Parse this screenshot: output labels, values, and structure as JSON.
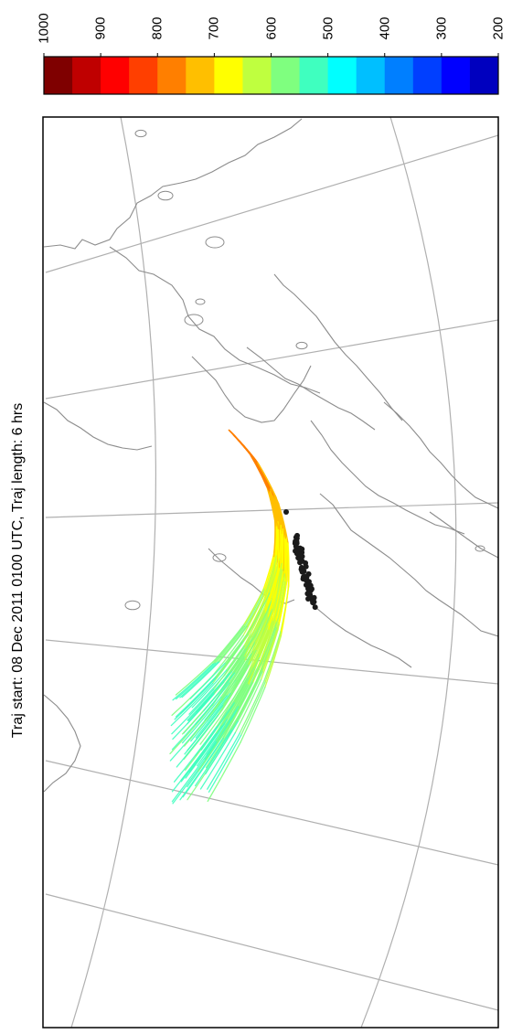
{
  "title": "Traj start: 08 Dec 2011 0100 UTC, Traj length: 6 hrs",
  "colorbar": {
    "tick_labels": [
      "1000",
      "900",
      "800",
      "700",
      "600",
      "500",
      "400",
      "300",
      "200"
    ],
    "colors": [
      "#7f0000",
      "#bf0000",
      "#ff0000",
      "#ff3f00",
      "#ff7f00",
      "#ffbf00",
      "#ffff00",
      "#bfff3f",
      "#7fff7f",
      "#3fffbf",
      "#00ffff",
      "#00bfff",
      "#007fff",
      "#003fff",
      "#0000ff",
      "#0000bf"
    ]
  },
  "map": {
    "graticule_color": "#b0b0b0",
    "coastline_color": "#8c8c8c",
    "start_point_color": "#1a1a1a"
  }
}
